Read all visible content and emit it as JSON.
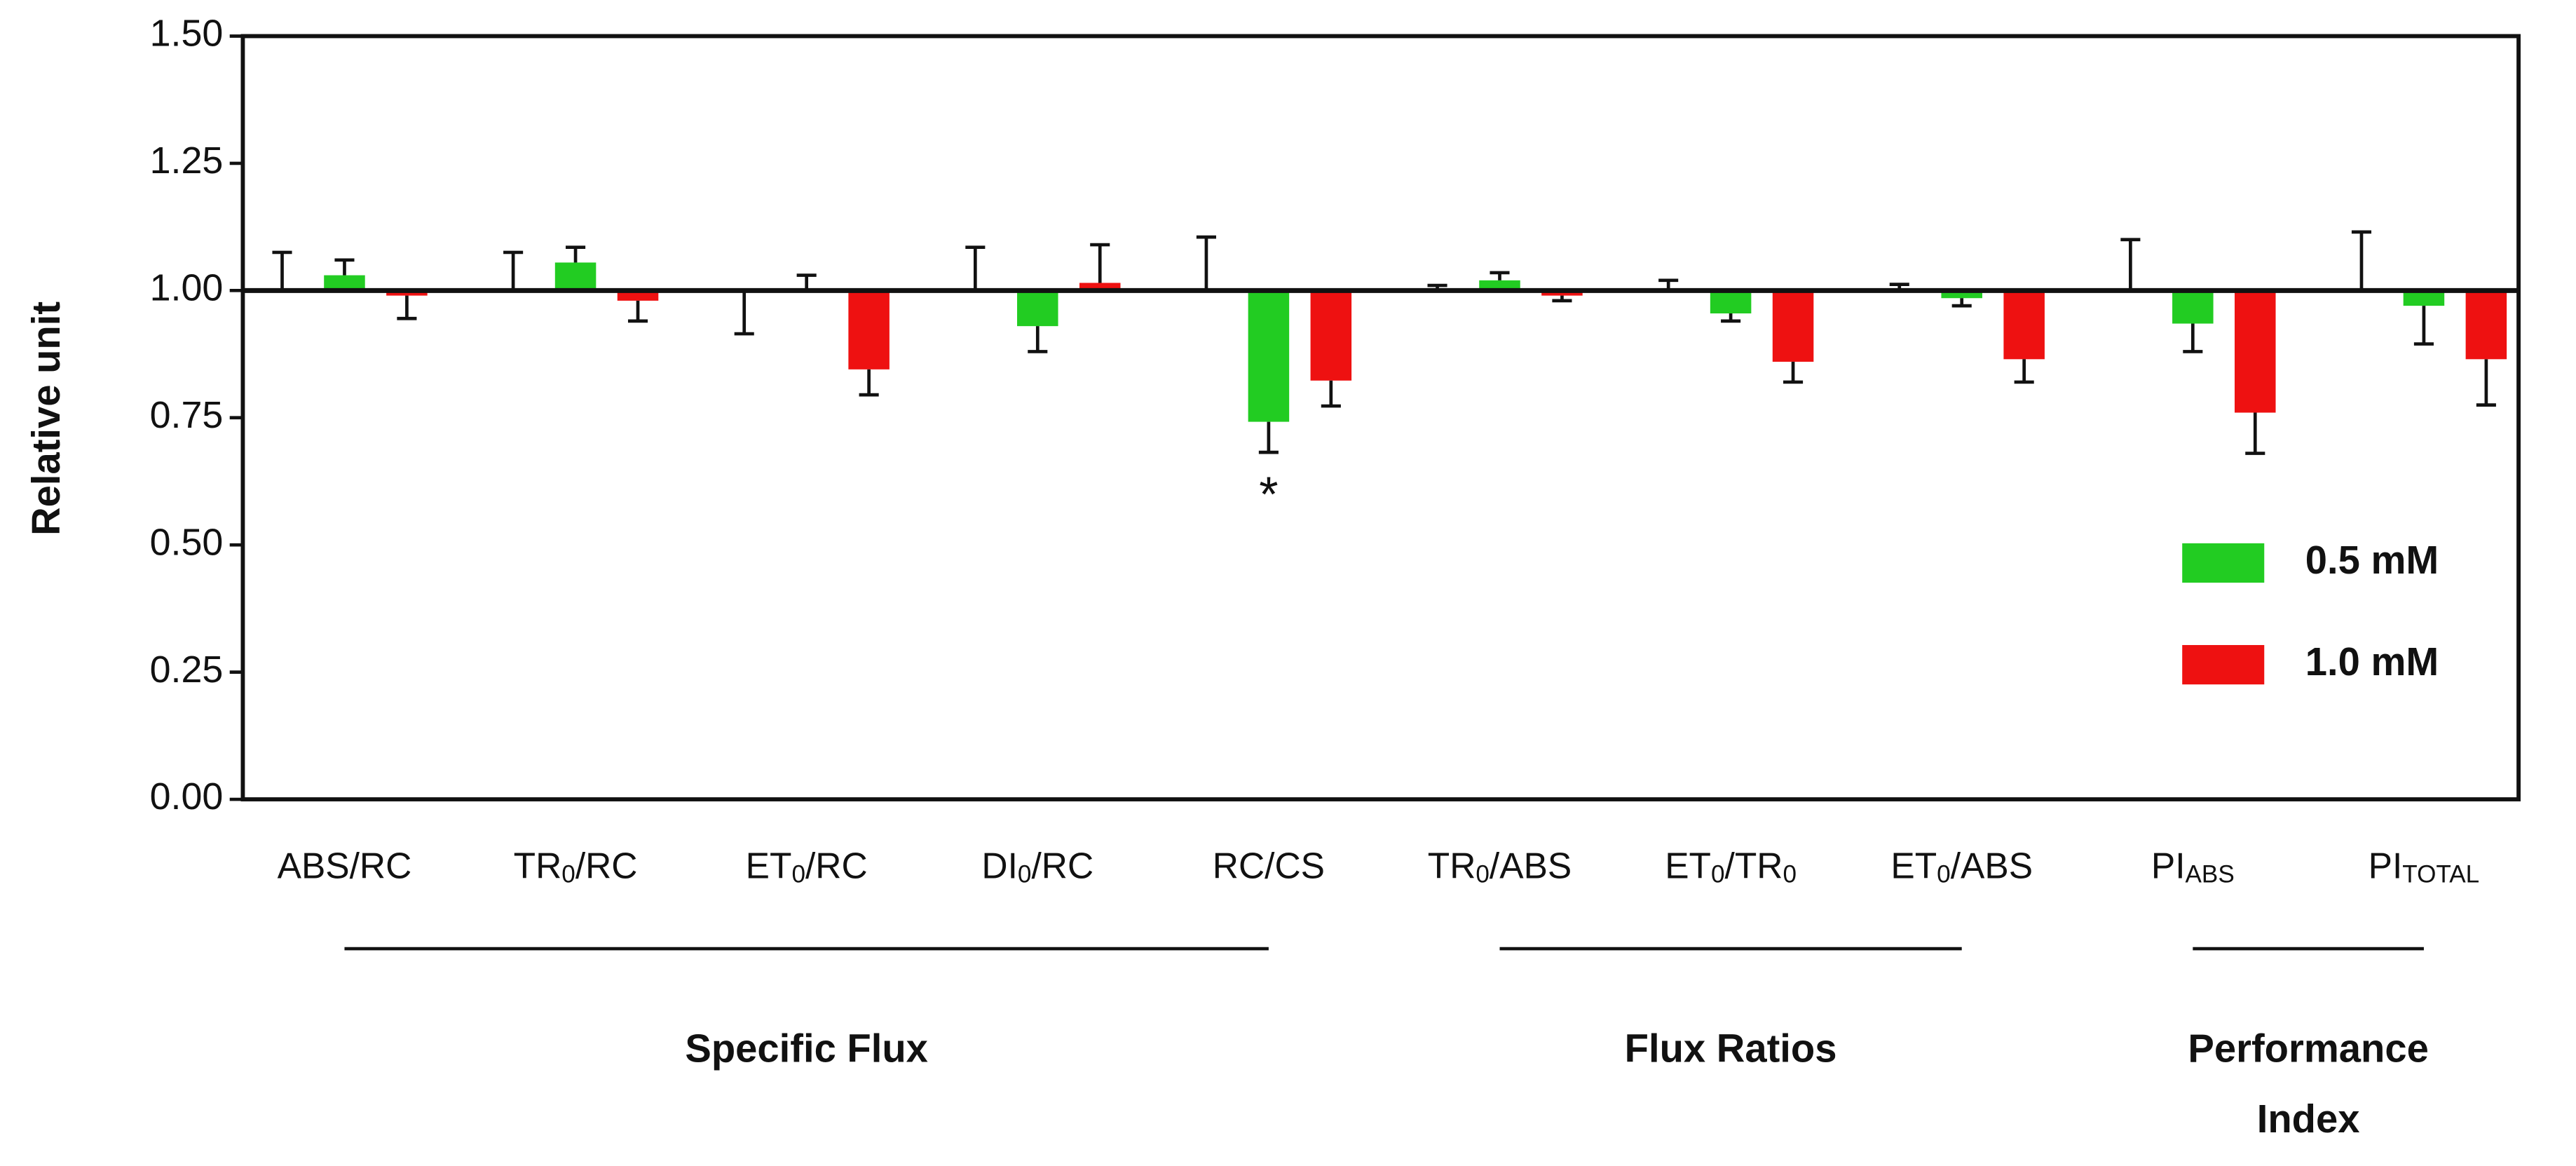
{
  "chart_data": {
    "type": "bar",
    "y_label": "Relative unit",
    "categories": [
      [
        "ABS/RC"
      ],
      [
        "TR",
        "0",
        "/RC"
      ],
      [
        "ET",
        "0",
        "/RC"
      ],
      [
        "DI",
        "0",
        "/RC"
      ],
      [
        "RC/CS"
      ],
      [
        "TR",
        "0",
        "/ABS"
      ],
      [
        "ET",
        "0",
        "/TR",
        "0"
      ],
      [
        "ET",
        "0",
        "/ABS"
      ],
      [
        "PI",
        "ABS"
      ],
      [
        "PI",
        "TOTAL"
      ]
    ],
    "baseline": 1.0,
    "series": [
      {
        "color": "#ffffff",
        "values": [
          1.0,
          1.0,
          1.0,
          1.0,
          1.0,
          1.0,
          1.0,
          1.0,
          1.0,
          1.0
        ],
        "errors": [
          0.075,
          0.075,
          0.085,
          0.085,
          0.105,
          0.01,
          0.02,
          0.012,
          0.1,
          0.115
        ],
        "error_sides": [
          "up",
          "up",
          "down",
          "up",
          "up",
          "up",
          "up",
          "up",
          "up",
          "up"
        ]
      },
      {
        "name": "0.5 mM",
        "color": "#22cc22",
        "values": [
          1.03,
          1.055,
          1.0,
          0.93,
          0.742,
          1.02,
          0.955,
          0.985,
          0.935,
          0.97
        ],
        "errors": [
          0.03,
          0.03,
          0.03,
          0.05,
          0.06,
          0.015,
          0.015,
          0.015,
          0.055,
          0.075
        ]
      },
      {
        "name": "1.0 mM",
        "color": "#ee1111",
        "values": [
          0.99,
          0.98,
          0.845,
          1.015,
          0.823,
          0.99,
          0.86,
          0.865,
          0.76,
          0.865
        ],
        "errors": [
          0.045,
          0.04,
          0.05,
          0.075,
          0.05,
          0.01,
          0.04,
          0.045,
          0.08,
          0.09
        ]
      }
    ],
    "ylim": [
      0,
      1.5
    ],
    "yticks": [
      {
        "value": 0,
        "label": "0.00"
      },
      {
        "value": 0.25,
        "label": "0.25"
      },
      {
        "value": 0.5,
        "label": "0.50"
      },
      {
        "value": 0.75,
        "label": "0.75"
      },
      {
        "value": 1.0,
        "label": "1.00"
      },
      {
        "value": 1.25,
        "label": "1.25"
      },
      {
        "value": 1.5,
        "label": "1.50"
      }
    ],
    "legend": "right",
    "annotations": [
      {
        "text": "*",
        "category": 4,
        "series": 1
      }
    ],
    "groups": [
      {
        "label": "Specific Flux",
        "from": 0,
        "to": 4
      },
      {
        "label": "Flux Ratios",
        "from": 5,
        "to": 7
      },
      {
        "label": "Performance Index",
        "from": 8,
        "to": 9
      }
    ]
  }
}
